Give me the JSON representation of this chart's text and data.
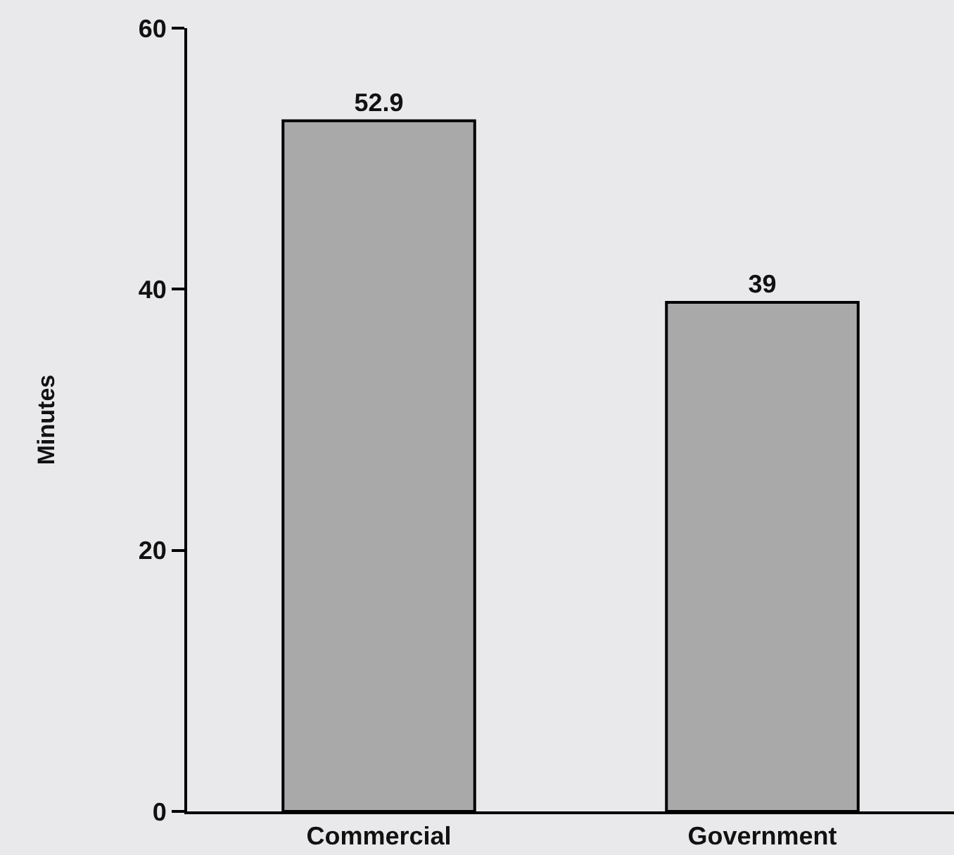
{
  "chart_data": {
    "type": "bar",
    "ylabel": "Minutes",
    "categories": [
      "Commercial",
      "Government"
    ],
    "values": [
      52.9,
      39
    ],
    "color": "#a9a9a9",
    "ylim": [
      0,
      60
    ],
    "yticks": [
      0,
      20,
      40,
      60
    ],
    "data_labels": true
  }
}
